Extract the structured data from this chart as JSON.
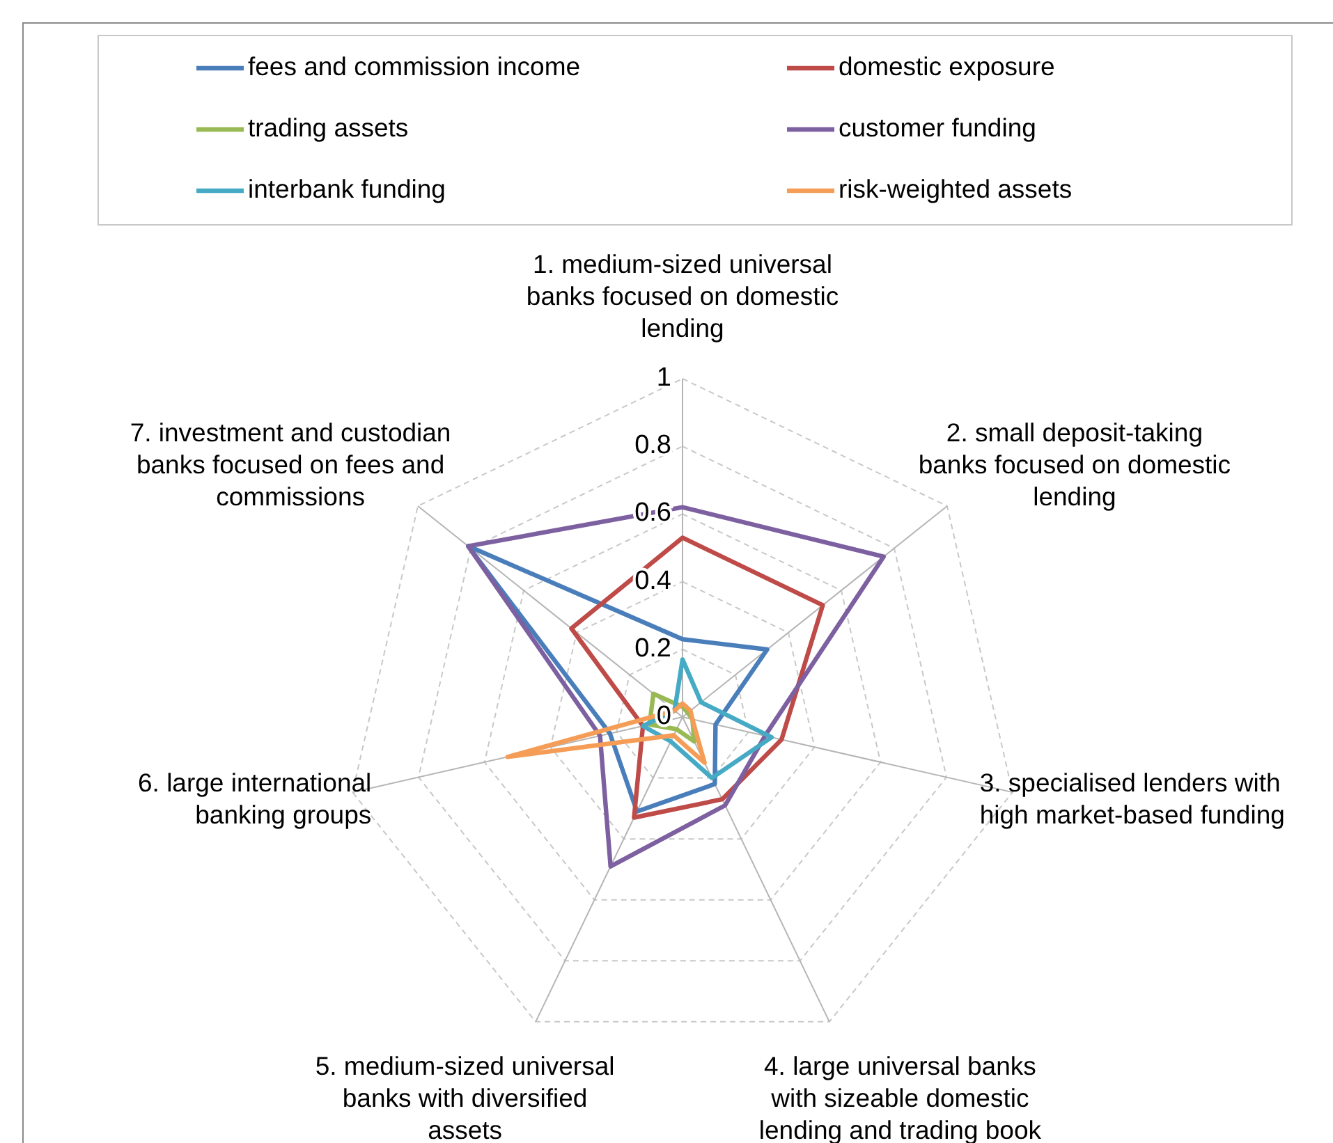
{
  "chart_data": {
    "type": "radar",
    "categories": [
      "1. medium-sized universal banks focused on domestic lending",
      "2. small deposit-taking banks focused on domestic lending",
      "3. specialised lenders with high market-based funding",
      "4. large universal banks with sizeable domestic lending and trading book",
      "5. medium-sized universal banks with diversified assets",
      "6. large international banking groups",
      "7. investment and custodian banks focused on fees and commissions"
    ],
    "series": [
      {
        "name": "fees and commission income",
        "color": "#4a7ebb",
        "values": [
          0.23,
          0.32,
          0.1,
          0.22,
          0.31,
          0.22,
          0.81
        ]
      },
      {
        "name": "domestic exposure",
        "color": "#be4b48",
        "values": [
          0.53,
          0.53,
          0.3,
          0.27,
          0.33,
          0.12,
          0.42
        ]
      },
      {
        "name": "trading assets",
        "color": "#98b954",
        "values": [
          0.03,
          0.02,
          0.03,
          0.08,
          0.04,
          0.1,
          0.11
        ]
      },
      {
        "name": "customer funding",
        "color": "#7d60a0",
        "values": [
          0.62,
          0.76,
          0.25,
          0.29,
          0.49,
          0.25,
          0.81
        ]
      },
      {
        "name": "interbank funding",
        "color": "#46aac5",
        "values": [
          0.17,
          0.07,
          0.27,
          0.2,
          0.08,
          0.12,
          0.03
        ]
      },
      {
        "name": "risk-weighted assets",
        "color": "#f59d56",
        "values": [
          0.04,
          0.03,
          0.03,
          0.15,
          0.06,
          0.53,
          0.03
        ]
      }
    ],
    "ylim": [
      0,
      1
    ],
    "yticks": [
      0,
      0.2,
      0.4,
      0.6,
      0.8,
      1
    ],
    "grid": true,
    "legend": "top",
    "marker": "none",
    "line_style": "solid"
  }
}
